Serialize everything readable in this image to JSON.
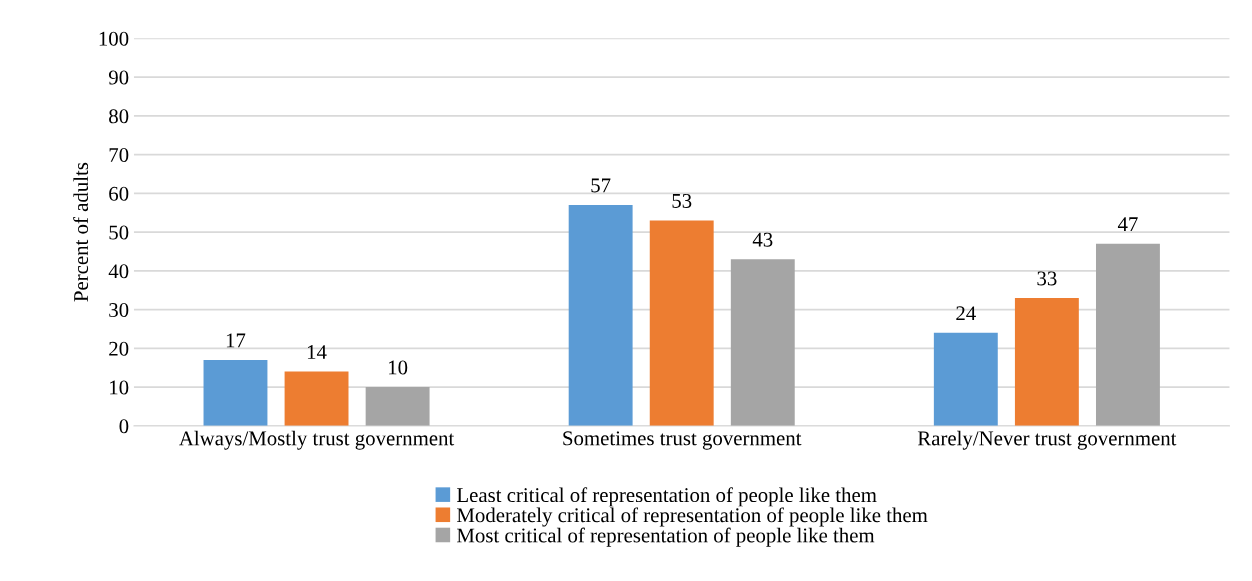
{
  "chart_data": {
    "type": "bar",
    "ylabel": "Percent of adults",
    "categories": [
      "Always/Mostly trust government",
      "Sometimes trust government",
      "Rarely/Never trust government"
    ],
    "series": [
      {
        "name": "Least critical of representation of people like them",
        "color": "#5b9bd5",
        "values": [
          17,
          57,
          24
        ]
      },
      {
        "name": "Moderately critical of representation of people like them",
        "color": "#ed7d31",
        "values": [
          14,
          53,
          33
        ]
      },
      {
        "name": "Most critical of representation of people like them",
        "color": "#a5a5a5",
        "values": [
          10,
          43,
          47
        ]
      }
    ],
    "ylim": [
      0,
      100
    ],
    "yticks": [
      0,
      10,
      20,
      30,
      40,
      50,
      60,
      70,
      80,
      90,
      100
    ],
    "grid": "y",
    "legend": "bottom",
    "data_labels": true
  }
}
